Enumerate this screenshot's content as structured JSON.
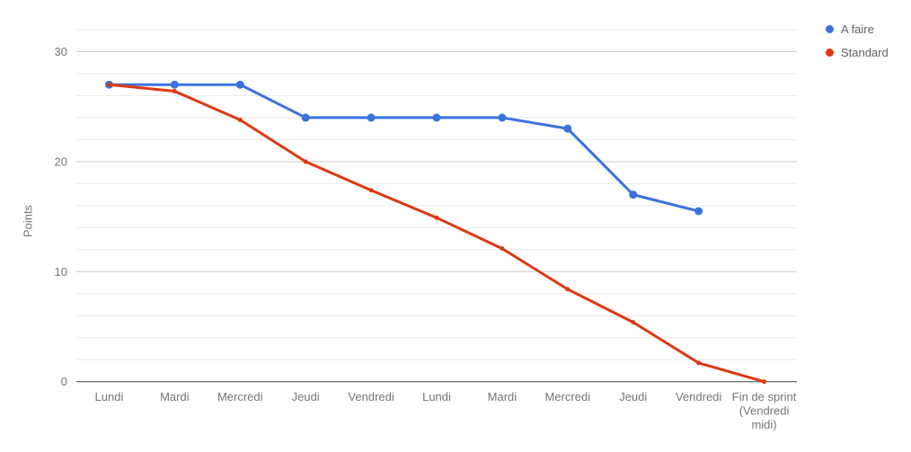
{
  "chart": {
    "ylabel": "Points",
    "colors": {
      "background": "#ffffff",
      "axis_line": "#424242",
      "gridline_major": "#cccccc",
      "gridline_minor": "#ebebeb",
      "tick_text": "#757575",
      "legend_text": "#616161"
    }
  },
  "chart_data": {
    "type": "line",
    "title": "",
    "xlabel": "",
    "ylabel": "Points",
    "categories": [
      "Lundi",
      "Mardi",
      "Mercredi",
      "Jeudi",
      "Vendredi",
      "Lundi",
      "Mardi",
      "Mercredi",
      "Jeudi",
      "Vendredi",
      "Fin de sprint\n(Vendredi\nmidi)"
    ],
    "series": [
      {
        "name": "A faire",
        "color": "#3B72E0",
        "values": [
          27,
          27,
          27,
          24,
          24,
          24,
          24,
          23,
          17,
          15.5,
          null
        ],
        "point_radius": 4.5,
        "line_width": 3
      },
      {
        "name": "Standard",
        "color": "#DC3912",
        "values": [
          27,
          26.4,
          23.8,
          20,
          17.4,
          14.9,
          12.1,
          8.4,
          5.4,
          1.7,
          0
        ],
        "point_radius": 2.5,
        "line_width": 3
      }
    ],
    "ylim": [
      0,
      32
    ],
    "yticks_labeled": [
      0,
      10,
      20,
      30
    ],
    "grid_step": 2,
    "grid": true,
    "legend_position": "top-right"
  }
}
